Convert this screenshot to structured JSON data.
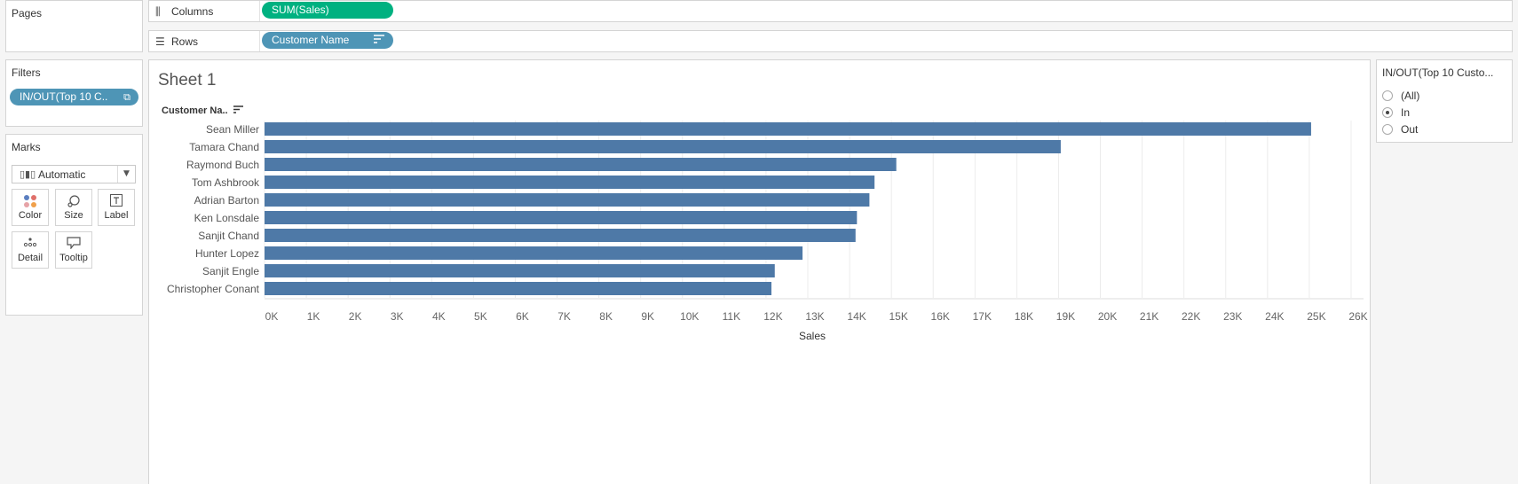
{
  "left_panel": {
    "pages_title": "Pages",
    "filters_title": "Filters",
    "filter_pill": "IN/OUT(Top 10 C..",
    "marks_title": "Marks",
    "mark_type": "Automatic",
    "mark_buttons": [
      "Color",
      "Size",
      "Label",
      "Detail",
      "Tooltip"
    ]
  },
  "shelves": {
    "columns_label": "Columns",
    "columns_pill": "SUM(Sales)",
    "rows_label": "Rows",
    "rows_pill": "Customer Name"
  },
  "sheet": {
    "title": "Sheet 1",
    "row_header": "Customer Na.."
  },
  "filter_card": {
    "title": "IN/OUT(Top 10 Custo...",
    "options": [
      "(All)",
      "In",
      "Out"
    ],
    "selected": "In"
  },
  "colors": {
    "bar": "#4e79a7",
    "green_pill": "#00b180",
    "blue_pill": "#4e95b6"
  },
  "chart_data": {
    "type": "bar",
    "orientation": "horizontal",
    "categories": [
      "Sean Miller",
      "Tamara Chand",
      "Raymond Buch",
      "Tom Ashbrook",
      "Adrian Barton",
      "Ken Lonsdale",
      "Sanjit Chand",
      "Hunter Lopez",
      "Sanjit Engle",
      "Christopher Conant"
    ],
    "values": [
      25043,
      19052,
      15117,
      14596,
      14474,
      14175,
      14142,
      12873,
      12209,
      12129
    ],
    "xlabel": "Sales",
    "ylabel": "Customer Name",
    "xlim": [
      0,
      26000
    ],
    "x_ticks": [
      "0K",
      "1K",
      "2K",
      "3K",
      "4K",
      "5K",
      "6K",
      "7K",
      "8K",
      "9K",
      "10K",
      "11K",
      "12K",
      "13K",
      "14K",
      "15K",
      "16K",
      "17K",
      "18K",
      "19K",
      "20K",
      "21K",
      "22K",
      "23K",
      "24K",
      "25K",
      "26K"
    ],
    "grid": true
  }
}
